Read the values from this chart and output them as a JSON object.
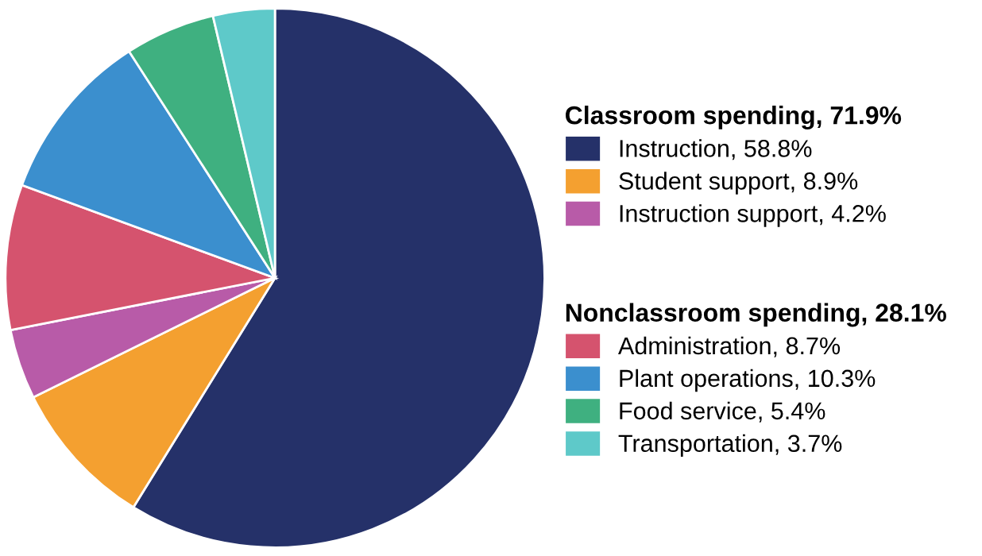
{
  "chart_data": {
    "type": "pie",
    "categories": [
      "Instruction, 58.8%",
      "Student support, 8.9%",
      "Instruction support, 4.2%",
      "Administration, 8.7%",
      "Plant operations, 10.3%",
      "Food service, 5.4%",
      "Transportation, 3.7%"
    ],
    "values": [
      58.8,
      8.9,
      4.2,
      8.7,
      10.3,
      5.4,
      3.7
    ],
    "colors": [
      "#253169",
      "#f4a030",
      "#b85ba8",
      "#d5536e",
      "#3b8fce",
      "#3fb080",
      "#5ec9c9"
    ],
    "annotations": [
      "Classroom spending, 71.9%",
      "Nonclassroom spending, 28.1%"
    ],
    "legend": "right"
  }
}
